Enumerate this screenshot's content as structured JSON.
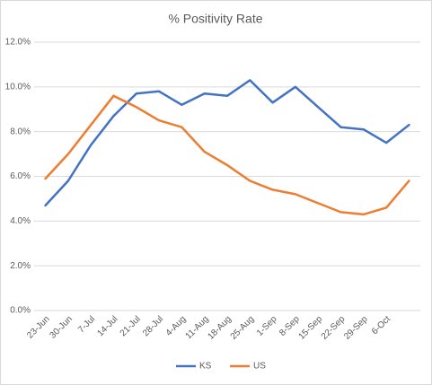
{
  "chart_data": {
    "type": "line",
    "title": "% Positivity Rate",
    "categories": [
      "23-Jun",
      "30-Jun",
      "7-Jul",
      "14-Jul",
      "21-Jul",
      "28-Jul",
      "4-Aug",
      "11-Aug",
      "18-Aug",
      "25-Aug",
      "1-Sep",
      "8-Sep",
      "15-Sep",
      "22-Sep",
      "29-Sep",
      "6-Oct",
      null
    ],
    "series": [
      {
        "name": "KS",
        "color": "#4472c4",
        "values": [
          4.7,
          5.8,
          7.4,
          8.7,
          9.7,
          9.8,
          9.2,
          9.7,
          9.6,
          10.3,
          9.3,
          10.0,
          9.1,
          8.2,
          8.1,
          7.5,
          8.3
        ]
      },
      {
        "name": "US",
        "color": "#ed7d31",
        "values": [
          5.9,
          7.0,
          8.3,
          9.6,
          9.1,
          8.5,
          8.2,
          7.1,
          6.5,
          5.8,
          5.4,
          5.2,
          4.8,
          4.4,
          4.3,
          4.6,
          5.8
        ]
      }
    ],
    "ylim": [
      0,
      12
    ],
    "yticks": [
      {
        "value": 0,
        "label": "0.0%"
      },
      {
        "value": 2,
        "label": "2.0%"
      },
      {
        "value": 4,
        "label": "4.0%"
      },
      {
        "value": 6,
        "label": "6.0%"
      },
      {
        "value": 8,
        "label": "8.0%"
      },
      {
        "value": 10,
        "label": "10.0%"
      },
      {
        "value": 12,
        "label": "12.0%"
      }
    ],
    "grid": true,
    "legend": "bottom"
  }
}
